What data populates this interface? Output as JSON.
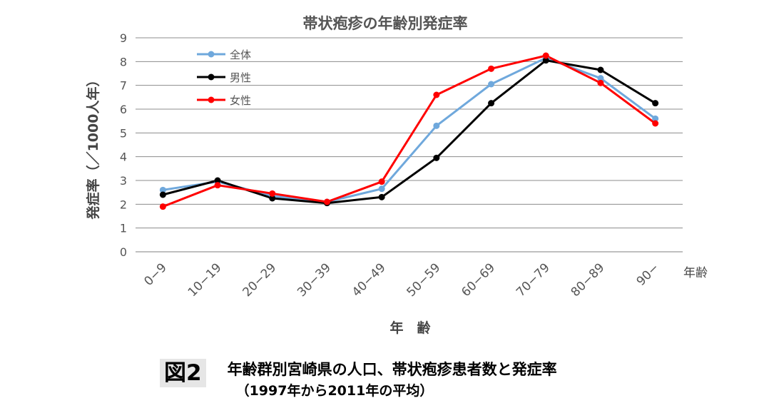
{
  "chart_data": {
    "type": "line",
    "title": "帯状疱疹の年齢別発症率",
    "xlabel": "年　齢",
    "xunit": "年齢",
    "ylabel": "発症率（／1000人年）",
    "categories": [
      "0−9",
      "10−19",
      "20−29",
      "30−39",
      "40−49",
      "50−59",
      "60−69",
      "70−79",
      "80−89",
      "90−"
    ],
    "ylim": [
      0,
      9
    ],
    "yticks": [
      0,
      1,
      2,
      3,
      4,
      5,
      6,
      7,
      8,
      9
    ],
    "grid": true,
    "legend_position": "top-left",
    "series": [
      {
        "name": "全体",
        "color": "#6fa8dc",
        "values": [
          2.6,
          2.95,
          2.35,
          2.1,
          2.65,
          5.3,
          7.05,
          8.15,
          7.3,
          5.6
        ]
      },
      {
        "name": "男性",
        "color": "#000000",
        "values": [
          2.4,
          3.0,
          2.25,
          2.05,
          2.3,
          3.95,
          6.25,
          8.05,
          7.65,
          6.25
        ]
      },
      {
        "name": "女性",
        "color": "#ff0000",
        "values": [
          1.9,
          2.8,
          2.45,
          2.1,
          2.95,
          6.6,
          7.7,
          8.25,
          7.1,
          5.4
        ]
      }
    ]
  },
  "caption": {
    "label": "図2",
    "line1": "年齢群別宮崎県の人口、帯状疱疹患者数と発症率",
    "line2": "（1997年から2011年の平均）"
  }
}
